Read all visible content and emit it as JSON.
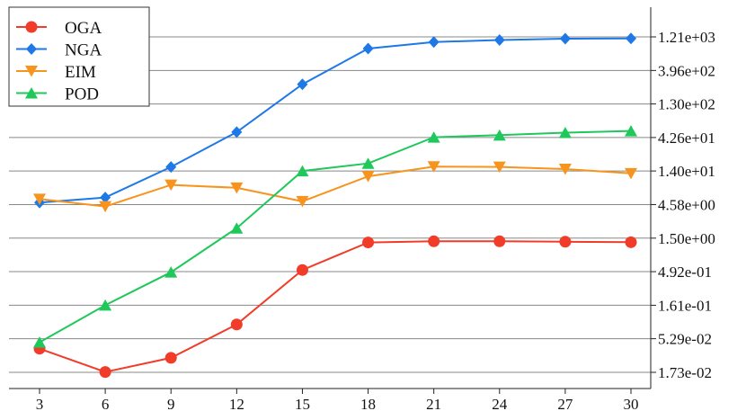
{
  "chart_data": {
    "type": "line",
    "x": [
      3,
      6,
      9,
      12,
      15,
      18,
      21,
      24,
      27,
      30
    ],
    "y_scale": "log",
    "ylim": [
      0.0135,
      1600
    ],
    "xlim": [
      3,
      30
    ],
    "y_axis_side": "right",
    "grid": "horizontal",
    "legend_placement": "top-left",
    "x_ticks": [
      "3",
      "6",
      "9",
      "12",
      "15",
      "18",
      "21",
      "24",
      "27",
      "30"
    ],
    "y_ticks": [
      {
        "value": 0.0173,
        "label": "1.73e-02"
      },
      {
        "value": 0.0529,
        "label": "5.29e-02"
      },
      {
        "value": 0.161,
        "label": "1.61e-01"
      },
      {
        "value": 0.492,
        "label": "4.92e-01"
      },
      {
        "value": 1.5,
        "label": "1.50e+00"
      },
      {
        "value": 4.58,
        "label": "4.58e+00"
      },
      {
        "value": 14.0,
        "label": "1.40e+01"
      },
      {
        "value": 42.6,
        "label": "4.26e+01"
      },
      {
        "value": 130,
        "label": "1.30e+02"
      },
      {
        "value": 396,
        "label": "3.96e+02"
      },
      {
        "value": 1210,
        "label": "1.21e+03"
      }
    ],
    "series": [
      {
        "name": "OGA",
        "color": "#f03c28",
        "marker": "circle",
        "values": [
          0.038,
          0.0175,
          0.028,
          0.085,
          0.52,
          1.3,
          1.35,
          1.35,
          1.33,
          1.31
        ]
      },
      {
        "name": "NGA",
        "color": "#1e78e6",
        "marker": "diamond",
        "values": [
          4.9,
          5.8,
          16,
          51,
          250,
          820,
          1020,
          1090,
          1140,
          1150
        ]
      },
      {
        "name": "EIM",
        "color": "#f7941d",
        "marker": "triangle-down",
        "values": [
          5.5,
          4.3,
          8.8,
          8.0,
          5.1,
          11.7,
          16.2,
          16.0,
          14.9,
          12.9
        ]
      },
      {
        "name": "POD",
        "color": "#1fc85a",
        "marker": "triangle-up",
        "values": [
          0.047,
          0.161,
          0.483,
          2.09,
          14.0,
          18.0,
          43.0,
          46.0,
          50.0,
          53.0
        ]
      }
    ]
  }
}
